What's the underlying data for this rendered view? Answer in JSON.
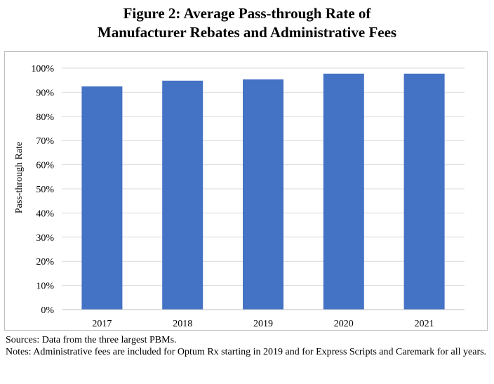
{
  "figure": {
    "title_line1": "Figure 2: Average Pass-through Rate of",
    "title_line2": "Manufacturer Rebates and Administrative Fees"
  },
  "notes": {
    "sources": "Sources: Data from the three largest PBMs.",
    "notes": "Notes: Administrative fees are included for Optum Rx starting in 2019 and for Express Scripts and Caremark for all years."
  },
  "colors": {
    "bar": "#4472C4",
    "grid": "#d9d9d9",
    "axis": "#bfbfbf"
  },
  "chart_data": {
    "type": "bar",
    "title": "Figure 2: Average Pass-through Rate of Manufacturer Rebates and Administrative Fees",
    "xlabel": "",
    "ylabel": "Pass-through Rate",
    "categories": [
      "2017",
      "2018",
      "2019",
      "2020",
      "2021"
    ],
    "values": [
      92.4,
      94.8,
      95.3,
      97.7,
      97.7
    ],
    "ylim": [
      0,
      100
    ],
    "yticks": [
      0,
      10,
      20,
      30,
      40,
      50,
      60,
      70,
      80,
      90,
      100
    ],
    "ytick_labels": [
      "0%",
      "10%",
      "20%",
      "30%",
      "40%",
      "50%",
      "60%",
      "70%",
      "80%",
      "90%",
      "100%"
    ],
    "grid": true,
    "legend": "none"
  }
}
